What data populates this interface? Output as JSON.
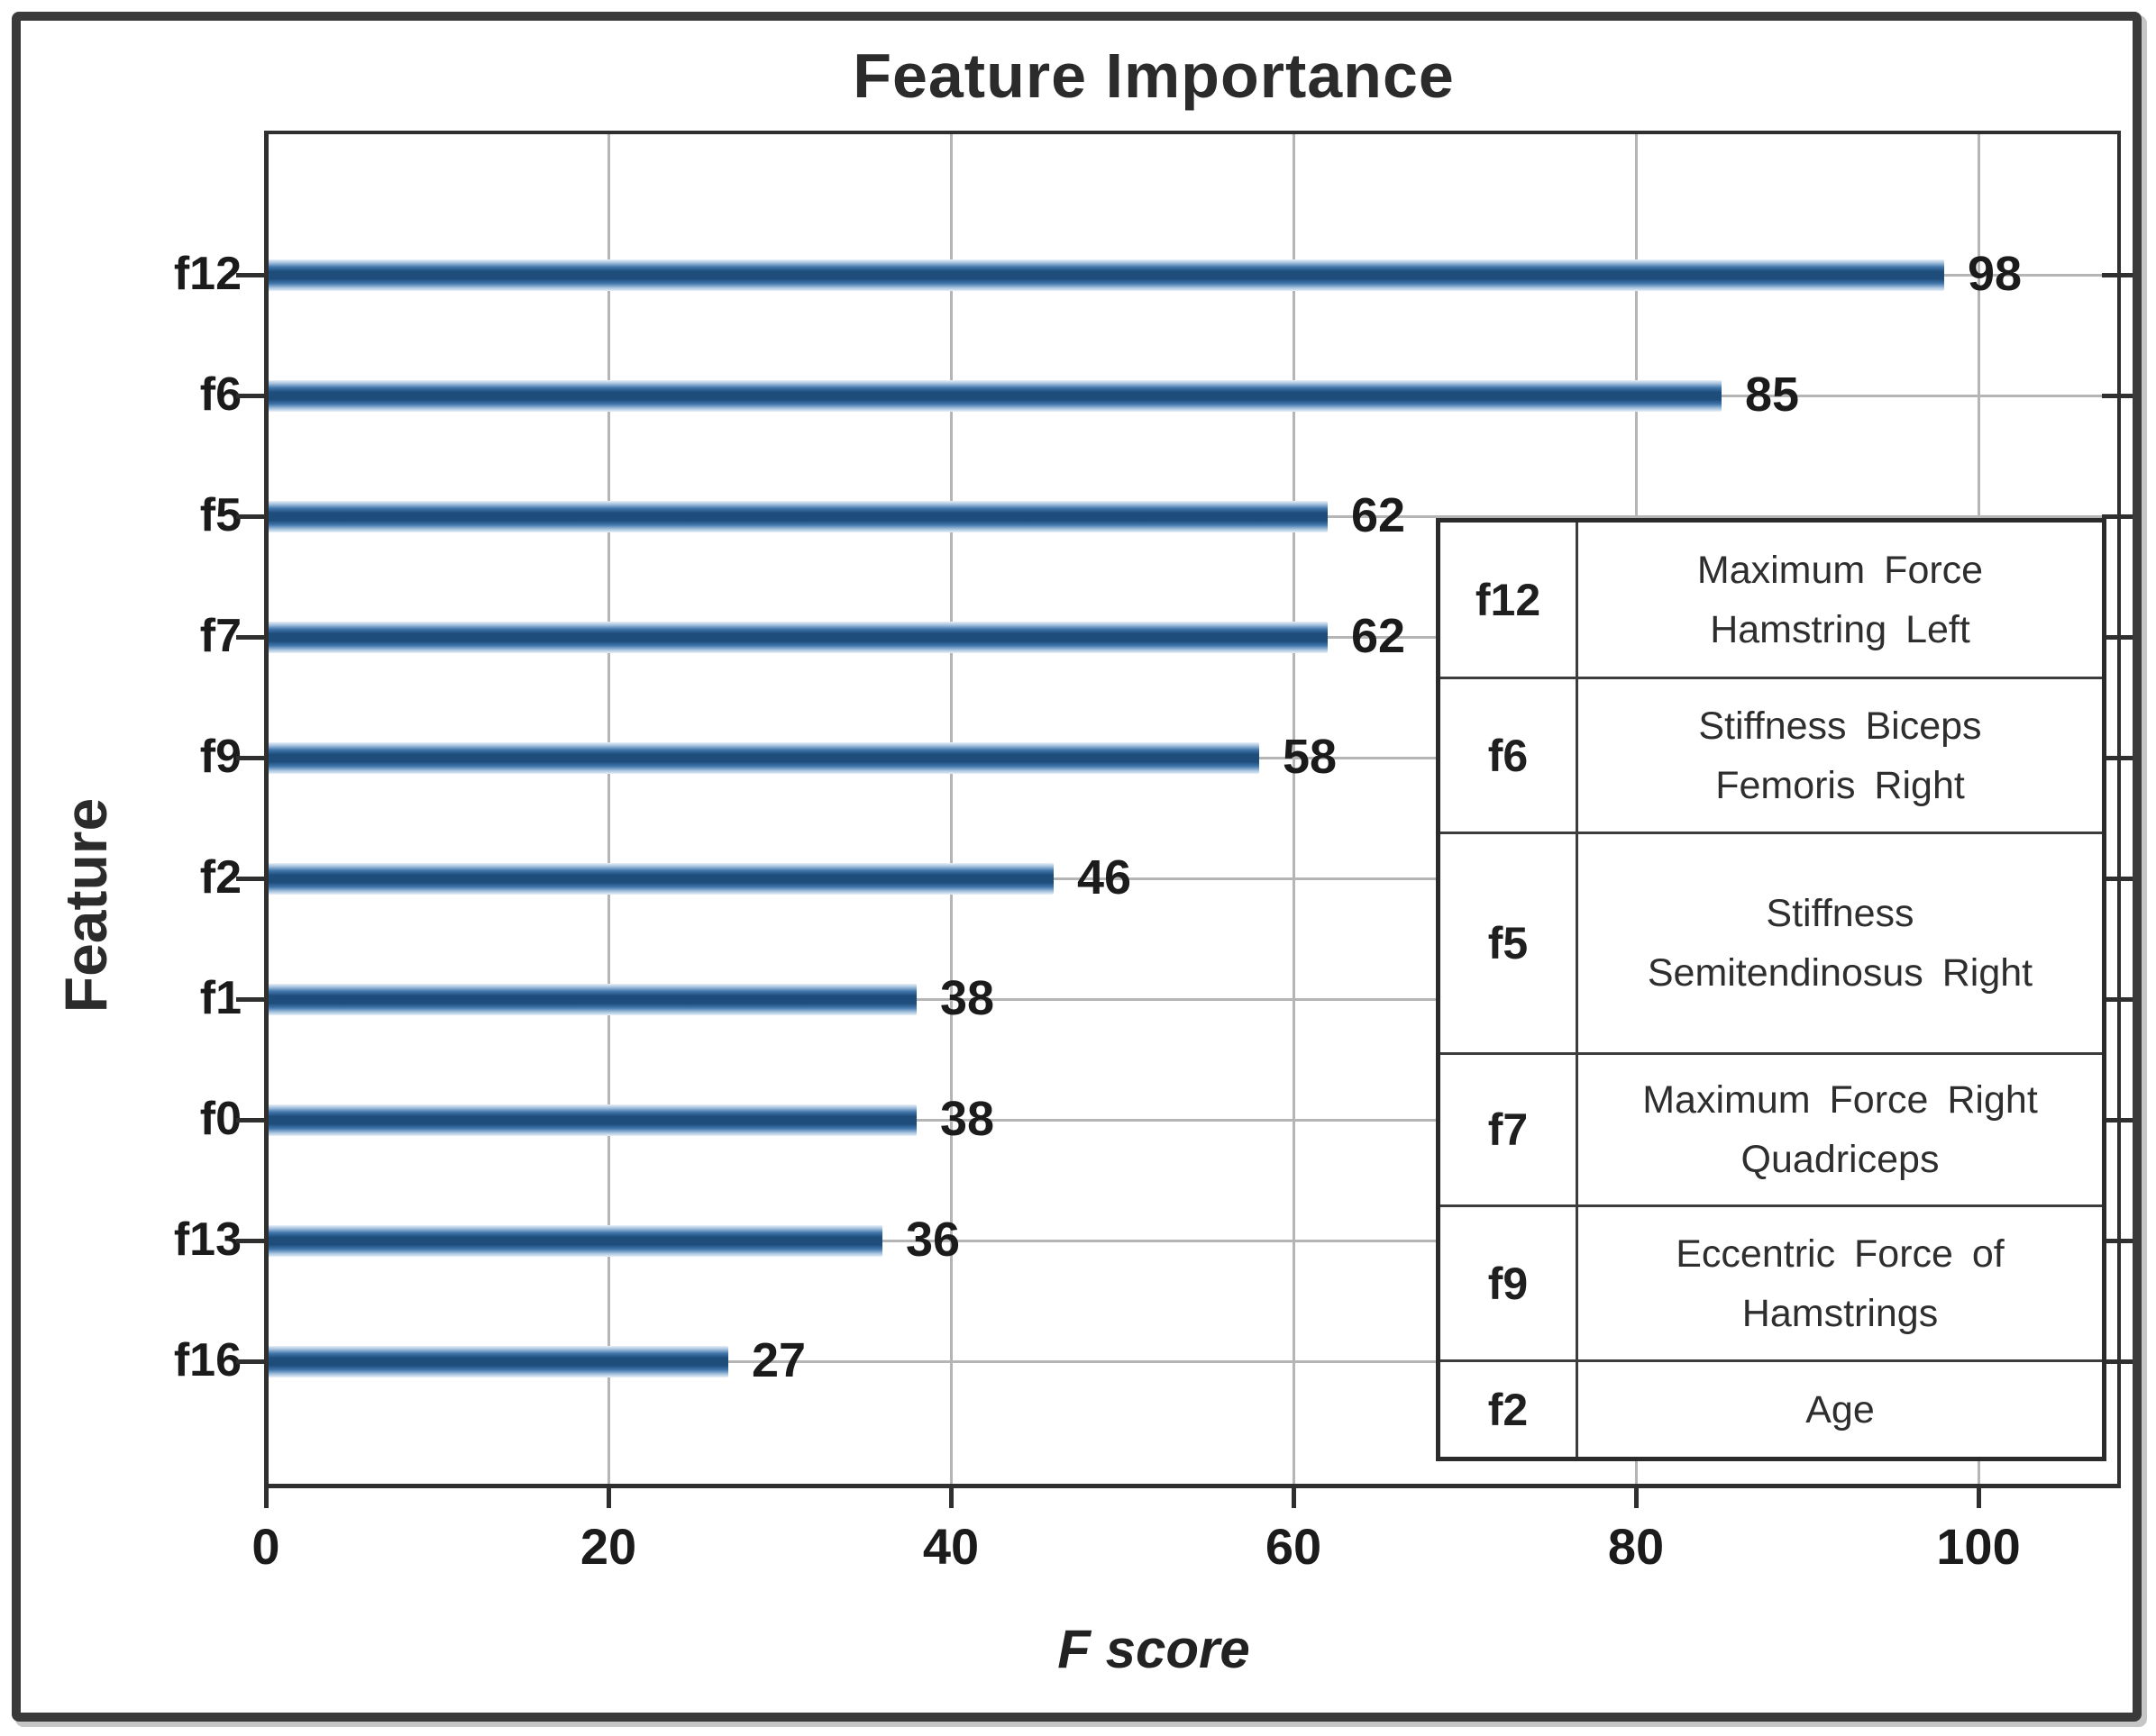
{
  "figure": {
    "title": "Feature Importance",
    "x_axis": {
      "label": "F score",
      "tick_labels": [
        "0",
        "20",
        "40",
        "60",
        "80",
        "100"
      ]
    },
    "y_axis": {
      "label": "Feature"
    }
  },
  "chart_data": {
    "type": "bar",
    "orientation": "horizontal",
    "title": "Feature Importance",
    "xlabel": "F score",
    "ylabel": "Feature",
    "categories": [
      "f12",
      "f6",
      "f5",
      "f7",
      "f9",
      "f2",
      "f1",
      "f0",
      "f13",
      "f16"
    ],
    "values": [
      98,
      85,
      62,
      62,
      58,
      46,
      38,
      38,
      36,
      27
    ],
    "data_labels": [
      "98",
      "85",
      "62",
      "62",
      "58",
      "46",
      "38",
      "38",
      "36",
      "27"
    ],
    "xticks": [
      0,
      20,
      40,
      60,
      80,
      100
    ],
    "xlim": [
      0,
      108
    ],
    "grid": true,
    "legend_position": "inside-right",
    "bar_color_center": "#1e4d7c",
    "bar_color_mid": "#4176ac",
    "bar_color_edge": "#a8c4de",
    "gridline_color": "#b5b5b5",
    "axis_color": "#2f2f2f"
  },
  "legend_table": {
    "rows": [
      {
        "code": "f12",
        "desc_lines": [
          "Maximum Force",
          "Hamstring Left"
        ]
      },
      {
        "code": "f6",
        "desc_lines": [
          "Stiffness Biceps",
          "Femoris Right"
        ]
      },
      {
        "code": "f5",
        "desc_lines": [
          "Stiffness",
          "Semitendinosus Right"
        ]
      },
      {
        "code": "f7",
        "desc_lines": [
          "Maximum Force Right",
          "Quadriceps"
        ]
      },
      {
        "code": "f9",
        "desc_lines": [
          "Eccentric Force of",
          "Hamstrings"
        ]
      },
      {
        "code": "f2",
        "desc_lines": [
          "Age"
        ]
      }
    ]
  }
}
